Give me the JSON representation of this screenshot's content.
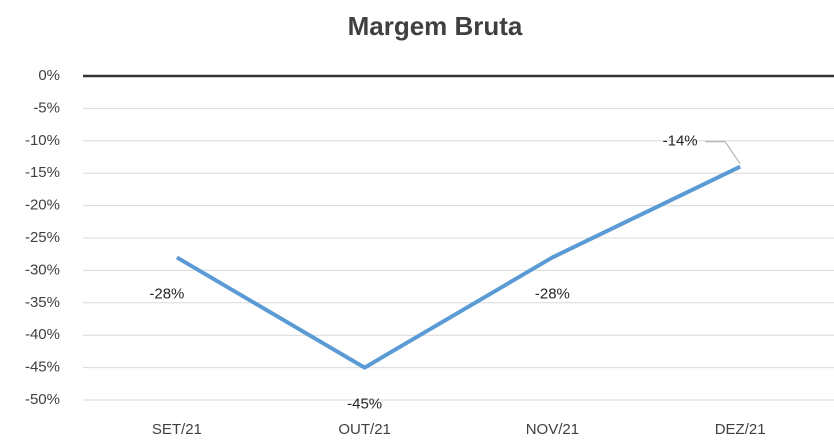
{
  "chart_data": {
    "type": "line",
    "title": "Margem Bruta",
    "categories": [
      "SET/21",
      "OUT/21",
      "NOV/21",
      "DEZ/21"
    ],
    "series": [
      {
        "name": "Margem Bruta",
        "color": "#5b9bd5",
        "values": [
          -28,
          -45,
          -28,
          -14
        ],
        "value_labels": [
          "-28%",
          "-45%",
          "-28%",
          "-14%"
        ]
      }
    ],
    "ylim": [
      -50,
      0
    ],
    "yticks": [
      {
        "value": 0,
        "label": "0%"
      },
      {
        "value": -5,
        "label": "-5%"
      },
      {
        "value": -10,
        "label": "-10%"
      },
      {
        "value": -15,
        "label": "-15%"
      },
      {
        "value": -20,
        "label": "-20%"
      },
      {
        "value": -25,
        "label": "-25%"
      },
      {
        "value": -30,
        "label": "-30%"
      },
      {
        "value": -35,
        "label": "-35%"
      },
      {
        "value": -40,
        "label": "-40%"
      },
      {
        "value": -45,
        "label": "-45%"
      },
      {
        "value": -50,
        "label": "-50%"
      }
    ],
    "grid": true
  }
}
